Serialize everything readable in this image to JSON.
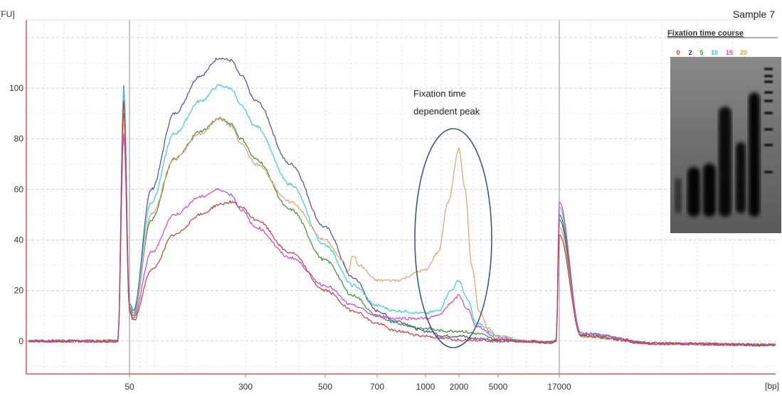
{
  "chart_data": {
    "type": "line",
    "title": "Sample 7",
    "ylabel": "[FU]",
    "xlabel": "[bp]",
    "ylim": [
      -13,
      127
    ],
    "grid": true,
    "x_axis_scale": "categorical-electropherogram",
    "x_tick_labels": [
      "50",
      "300",
      "500",
      "700",
      "1000",
      "2000",
      "5000",
      "17000"
    ],
    "y_ticks": [
      0,
      20,
      40,
      60,
      80,
      100
    ],
    "markers": [
      "50",
      "17000"
    ],
    "annotations": [
      {
        "text": "Fixation time dependent peak",
        "lines": [
          "Fixation time",
          "dependent peak"
        ],
        "at_x": "2000",
        "at_y": 42
      }
    ],
    "series": [
      {
        "color": "#4a4aa8",
        "points": [
          [
            35,
            0
          ],
          [
            48,
            0
          ],
          [
            49,
            101
          ],
          [
            50,
            15
          ],
          [
            53,
            12
          ],
          [
            70,
            60
          ],
          [
            100,
            90
          ],
          [
            150,
            105
          ],
          [
            200,
            112
          ],
          [
            240,
            111
          ],
          [
            280,
            105
          ],
          [
            320,
            95
          ],
          [
            400,
            70
          ],
          [
            500,
            45
          ],
          [
            600,
            25
          ],
          [
            700,
            12
          ],
          [
            800,
            8
          ],
          [
            1000,
            4
          ],
          [
            1500,
            2
          ],
          [
            2000,
            2
          ],
          [
            3000,
            1
          ],
          [
            5000,
            0.5
          ],
          [
            8000,
            0
          ],
          [
            14000,
            -0.5
          ],
          [
            16000,
            0
          ],
          [
            17000,
            50
          ],
          [
            18000,
            3
          ],
          [
            22000,
            -1
          ],
          [
            30000,
            -1.5
          ]
        ]
      },
      {
        "color": "#3ccccc",
        "points": [
          [
            35,
            0
          ],
          [
            48,
            0
          ],
          [
            49,
            100
          ],
          [
            50,
            14
          ],
          [
            53,
            11
          ],
          [
            70,
            55
          ],
          [
            100,
            82
          ],
          [
            150,
            95
          ],
          [
            200,
            101
          ],
          [
            240,
            100
          ],
          [
            280,
            93
          ],
          [
            320,
            85
          ],
          [
            400,
            62
          ],
          [
            500,
            38
          ],
          [
            600,
            22
          ],
          [
            700,
            14
          ],
          [
            800,
            12
          ],
          [
            1000,
            11
          ],
          [
            1300,
            12
          ],
          [
            1700,
            20
          ],
          [
            2000,
            24
          ],
          [
            2400,
            17
          ],
          [
            3000,
            7
          ],
          [
            5000,
            2
          ],
          [
            8000,
            0
          ],
          [
            14000,
            -0.5
          ],
          [
            16000,
            0
          ],
          [
            17000,
            53
          ],
          [
            18000,
            3
          ],
          [
            22000,
            -1
          ],
          [
            30000,
            -1.5
          ]
        ]
      },
      {
        "color": "#3c8c3c",
        "points": [
          [
            35,
            0
          ],
          [
            48,
            0
          ],
          [
            49,
            90
          ],
          [
            50,
            13
          ],
          [
            53,
            10
          ],
          [
            70,
            48
          ],
          [
            100,
            72
          ],
          [
            150,
            83
          ],
          [
            200,
            88
          ],
          [
            240,
            86
          ],
          [
            280,
            80
          ],
          [
            320,
            72
          ],
          [
            400,
            52
          ],
          [
            500,
            32
          ],
          [
            600,
            18
          ],
          [
            700,
            10
          ],
          [
            800,
            7
          ],
          [
            1000,
            5
          ],
          [
            1500,
            4
          ],
          [
            2000,
            4
          ],
          [
            3000,
            3
          ],
          [
            5000,
            0.5
          ],
          [
            8000,
            0
          ],
          [
            14000,
            -0.5
          ],
          [
            16000,
            0
          ],
          [
            17000,
            48
          ],
          [
            18000,
            2
          ],
          [
            22000,
            -1
          ],
          [
            30000,
            -1.5
          ]
        ]
      },
      {
        "color": "#e0a070",
        "points": [
          [
            35,
            0
          ],
          [
            48,
            0
          ],
          [
            49,
            88
          ],
          [
            50,
            13
          ],
          [
            53,
            9
          ],
          [
            70,
            50
          ],
          [
            100,
            72
          ],
          [
            150,
            82
          ],
          [
            200,
            88
          ],
          [
            240,
            85
          ],
          [
            280,
            78
          ],
          [
            320,
            70
          ],
          [
            400,
            55
          ],
          [
            500,
            40
          ],
          [
            560,
            32
          ],
          [
            580,
            28
          ],
          [
            600,
            34
          ],
          [
            620,
            30
          ],
          [
            700,
            24
          ],
          [
            800,
            24
          ],
          [
            1000,
            28
          ],
          [
            1300,
            35
          ],
          [
            1600,
            55
          ],
          [
            2000,
            76
          ],
          [
            2300,
            60
          ],
          [
            2700,
            30
          ],
          [
            3200,
            12
          ],
          [
            4000,
            5
          ],
          [
            5000,
            2
          ],
          [
            8000,
            0
          ],
          [
            14000,
            -0.5
          ],
          [
            16000,
            0
          ],
          [
            17000,
            45
          ],
          [
            18000,
            2
          ],
          [
            22000,
            -1
          ],
          [
            30000,
            -1.5
          ]
        ]
      },
      {
        "color": "#cc44cc",
        "points": [
          [
            35,
            0
          ],
          [
            48,
            0
          ],
          [
            49,
            82
          ],
          [
            50,
            12
          ],
          [
            53,
            9
          ],
          [
            70,
            35
          ],
          [
            100,
            50
          ],
          [
            150,
            57
          ],
          [
            200,
            60
          ],
          [
            240,
            58
          ],
          [
            280,
            52
          ],
          [
            320,
            45
          ],
          [
            400,
            33
          ],
          [
            500,
            22
          ],
          [
            600,
            14
          ],
          [
            700,
            10
          ],
          [
            800,
            9
          ],
          [
            1000,
            9
          ],
          [
            1300,
            10
          ],
          [
            1700,
            15
          ],
          [
            2000,
            18
          ],
          [
            2400,
            13
          ],
          [
            3000,
            6
          ],
          [
            5000,
            1
          ],
          [
            8000,
            0
          ],
          [
            14000,
            -0.5
          ],
          [
            16000,
            0
          ],
          [
            17000,
            55
          ],
          [
            18000,
            3
          ],
          [
            22000,
            -1
          ],
          [
            30000,
            -1.5
          ]
        ]
      },
      {
        "color": "#c04040",
        "points": [
          [
            35,
            0
          ],
          [
            48,
            0
          ],
          [
            49,
            95
          ],
          [
            50,
            12
          ],
          [
            53,
            8
          ],
          [
            70,
            28
          ],
          [
            100,
            42
          ],
          [
            150,
            50
          ],
          [
            200,
            54
          ],
          [
            240,
            55
          ],
          [
            280,
            53
          ],
          [
            320,
            48
          ],
          [
            400,
            35
          ],
          [
            500,
            20
          ],
          [
            600,
            12
          ],
          [
            700,
            7
          ],
          [
            800,
            4
          ],
          [
            1000,
            2
          ],
          [
            1500,
            1
          ],
          [
            2000,
            0.5
          ],
          [
            3000,
            0.5
          ],
          [
            5000,
            0
          ],
          [
            8000,
            0
          ],
          [
            14000,
            -0.5
          ],
          [
            16000,
            0
          ],
          [
            17000,
            42
          ],
          [
            18000,
            2
          ],
          [
            22000,
            -1
          ],
          [
            30000,
            -1.5
          ]
        ]
      }
    ],
    "inset": {
      "title": "Fixation time course",
      "lane_labels": [
        {
          "text": "0",
          "color": "#cc3333"
        },
        {
          "text": "2",
          "color": "#333399"
        },
        {
          "text": "5",
          "color": "#33aa33"
        },
        {
          "text": "10",
          "color": "#33cccc"
        },
        {
          "text": "15",
          "color": "#cc44cc"
        },
        {
          "text": "20",
          "color": "#e0a030"
        }
      ]
    }
  }
}
